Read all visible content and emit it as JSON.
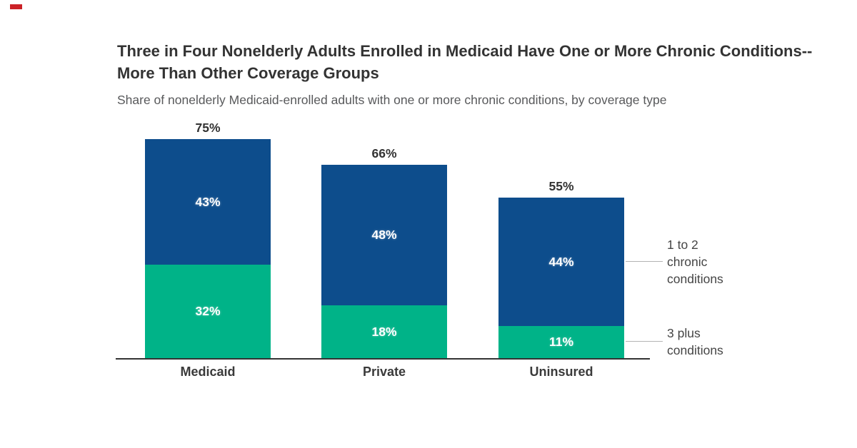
{
  "brand": {
    "accent_mark_color": "#cb2127"
  },
  "header": {
    "title": "Three in Four Nonelderly Adults Enrolled in Medicaid Have One or More Chronic Conditions--More Than Other Coverage Groups",
    "subtitle": "Share of nonelderly Medicaid-enrolled adults with one or more chronic conditions, by coverage type"
  },
  "chart_data": {
    "type": "bar",
    "subtype": "stacked-vertical",
    "title": "Three in Four Nonelderly Adults Enrolled in Medicaid Have One or More Chronic Conditions--More Than Other Coverage Groups",
    "subtitle": "Share of nonelderly Medicaid-enrolled adults with one or more chronic conditions, by coverage type",
    "categories": [
      "Medicaid",
      "Private",
      "Uninsured"
    ],
    "series": [
      {
        "name": "3 plus conditions",
        "color": "#00b388",
        "values": [
          32,
          18,
          11
        ],
        "value_labels": [
          "32%",
          "18%",
          "11%"
        ]
      },
      {
        "name": "1 to 2 chronic conditions",
        "color": "#0d4d8c",
        "values": [
          43,
          48,
          44
        ],
        "value_labels": [
          "43%",
          "48%",
          "44%"
        ]
      }
    ],
    "totals": [
      75,
      66,
      55
    ],
    "total_labels": [
      "75%",
      "66%",
      "55%"
    ],
    "value_label_color": "#ffffff",
    "ylim": [
      0,
      80
    ],
    "grid": false,
    "axis": {
      "baseline_color": "#333333",
      "y_axis_visible": false
    },
    "legend": {
      "position": "right",
      "leader_line_color": "#b3b3b3",
      "entries": [
        {
          "label": "1 to 2 chronic conditions",
          "series": "1 to 2 chronic conditions"
        },
        {
          "label": "3 plus conditions",
          "series": "3 plus conditions"
        }
      ]
    }
  }
}
